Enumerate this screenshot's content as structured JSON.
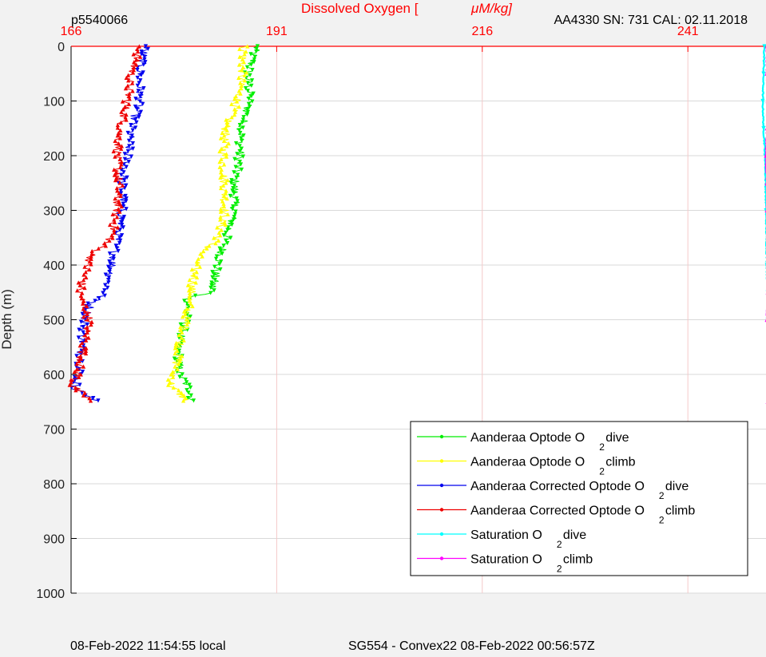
{
  "chart_data": {
    "type": "scatter",
    "title": "Dissolved Oxygen [",
    "title_unit": "μM/kg]",
    "header_left": "p5540066",
    "header_right": "AA4330   SN: 731   CAL: 02.11.2018",
    "footer_left": "08-Feb-2022 11:54:55 local",
    "footer_center": "SG554 - Convex22 08-Feb-2022 00:56:57Z",
    "ylabel": "Depth (m)",
    "xlim": [
      166,
      250.5
    ],
    "ylim": [
      0,
      1000
    ],
    "x_ticks": [
      "166",
      "191",
      "216",
      "241"
    ],
    "y_ticks": [
      "0",
      "100",
      "200",
      "300",
      "400",
      "500",
      "600",
      "700",
      "800",
      "900",
      "1000"
    ],
    "grid": true,
    "y_reversed": true,
    "x_axis_position": "top",
    "legend_position": "bottom-right",
    "colors": {
      "axis_top": "#ff0000",
      "grid_x": "#f4c9c9",
      "grid_y": "#d9d9d9"
    },
    "series": [
      {
        "name": "Aanderaa Optode O",
        "sub": "2",
        "suffix": " dive",
        "color": "#00ee00",
        "marker": "down-triangle",
        "depth": [
          0,
          50,
          100,
          150,
          200,
          250,
          300,
          350,
          400,
          450,
          460,
          500,
          550,
          600,
          630,
          650
        ],
        "value": [
          188.5,
          187.5,
          187.7,
          186.7,
          186.5,
          185.9,
          185.9,
          184.9,
          183.8,
          183.1,
          180.2,
          180,
          179,
          179.2,
          180.5,
          180.8
        ]
      },
      {
        "name": "Aanderaa Optode O",
        "sub": "2",
        "suffix": " climb",
        "color": "#ffff00",
        "marker": "up-triangle",
        "depth": [
          0,
          50,
          100,
          150,
          200,
          250,
          300,
          350,
          380,
          400,
          450,
          500,
          550,
          600,
          620,
          650
        ],
        "value": [
          187,
          186.8,
          186.2,
          184.8,
          184.5,
          184.6,
          184.7,
          183.9,
          181.7,
          181.2,
          180.6,
          180,
          179.2,
          178.5,
          178.1,
          180.2
        ]
      },
      {
        "name": "Aanderaa Corrected Optode O",
        "sub": "2",
        "suffix": " dive",
        "color": "#0000ee",
        "marker": "down-triangle",
        "depth": [
          0,
          50,
          100,
          150,
          200,
          250,
          300,
          350,
          400,
          450,
          470,
          500,
          550,
          600,
          625,
          650
        ],
        "value": [
          175,
          174.3,
          174.4,
          173.3,
          172.9,
          172.2,
          172.3,
          171.6,
          171,
          170.2,
          168.5,
          167.6,
          167.3,
          167,
          166.5,
          169
        ]
      },
      {
        "name": "Aanderaa Corrected Optode O",
        "sub": "2",
        "suffix": " climb",
        "color": "#ee0000",
        "marker": "up-triangle",
        "depth": [
          0,
          50,
          100,
          150,
          200,
          250,
          300,
          350,
          380,
          400,
          450,
          500,
          550,
          600,
          620,
          650
        ],
        "value": [
          174.4,
          173.3,
          172.8,
          172,
          171.6,
          171.8,
          171.6,
          170.9,
          168.6,
          168,
          167,
          168.2,
          167.5,
          166.8,
          166.1,
          168.5
        ]
      },
      {
        "name": "Saturation O",
        "sub": "2",
        "suffix": " dive",
        "color": "#00ffff",
        "marker": "down-triangle",
        "depth": [
          0,
          50,
          100,
          150,
          200,
          300,
          400,
          500,
          550,
          600
        ],
        "value": [
          250.3,
          250.2,
          250.1,
          250.2,
          250.4,
          250.5,
          250.6,
          250.7,
          250.9,
          250.8
        ]
      },
      {
        "name": "Saturation O",
        "sub": "2",
        "suffix": " climb",
        "color": "#ff00ff",
        "marker": "up-triangle",
        "depth": [
          0,
          50,
          100,
          150,
          200,
          250,
          300,
          350,
          400,
          450,
          500,
          550,
          600,
          625,
          650
        ],
        "value": [
          250.6,
          250.6,
          250.7,
          250.6,
          250.5,
          250.6,
          250.6,
          250.8,
          250.8,
          250.7,
          250.6,
          250.9,
          250.9,
          251,
          250.7
        ]
      }
    ]
  }
}
